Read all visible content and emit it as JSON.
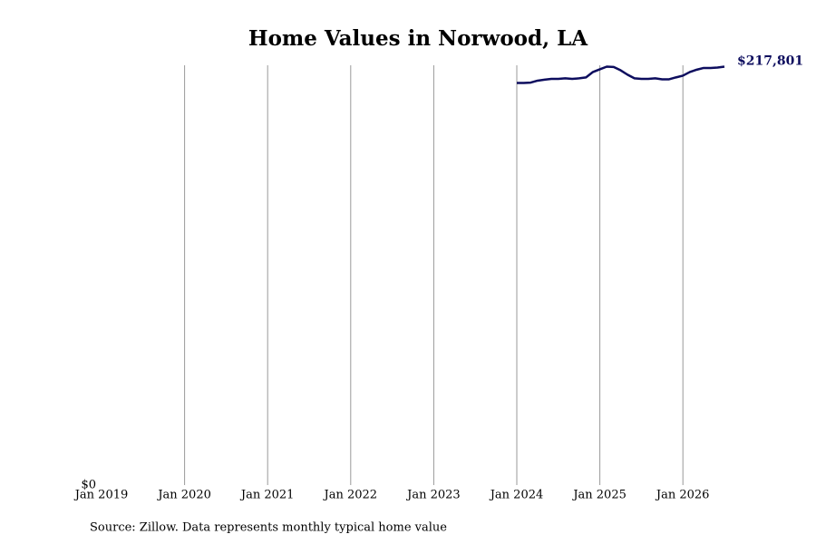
{
  "chart_data": {
    "type": "line",
    "title": "Home Values in Norwood, LA",
    "source": "Source: Zillow. Data represents monthly typical home value",
    "x": [
      "2024-01",
      "2024-02",
      "2024-03",
      "2024-04",
      "2024-05",
      "2024-06",
      "2024-07",
      "2024-08",
      "2024-09",
      "2024-10",
      "2024-11",
      "2024-12",
      "2025-01",
      "2025-02",
      "2025-03",
      "2025-04",
      "2025-05",
      "2025-06",
      "2025-07",
      "2025-08",
      "2025-09",
      "2025-10",
      "2025-11",
      "2025-12",
      "2026-01",
      "2026-02",
      "2026-03",
      "2026-04",
      "2026-05",
      "2026-06",
      "2026-07"
    ],
    "series": [
      {
        "color": "#0d0d5e",
        "values": [
          209300,
          209300,
          209500,
          210500,
          211000,
          211400,
          211400,
          211700,
          211400,
          211700,
          212200,
          215000,
          216400,
          217800,
          217600,
          215900,
          213600,
          211700,
          211400,
          211400,
          211700,
          211200,
          211200,
          212200,
          213100,
          215000,
          216200,
          217100,
          217100,
          217300,
          217801
        ],
        "value_labels": [
          null,
          null,
          null,
          null,
          null,
          null,
          null,
          null,
          null,
          null,
          null,
          null,
          null,
          null,
          null,
          null,
          null,
          null,
          null,
          null,
          null,
          null,
          null,
          null,
          null,
          null,
          null,
          null,
          null,
          null,
          "$217,801"
        ]
      }
    ],
    "xlim": [
      "2019-01",
      "2026-07"
    ],
    "xticks": [
      {
        "value": "2019-01",
        "label": "Jan 2019"
      },
      {
        "value": "2020-01",
        "label": "Jan 2020"
      },
      {
        "value": "2021-01",
        "label": "Jan 2021"
      },
      {
        "value": "2022-01",
        "label": "Jan 2022"
      },
      {
        "value": "2023-01",
        "label": "Jan 2023"
      },
      {
        "value": "2024-01",
        "label": "Jan 2024"
      },
      {
        "value": "2025-01",
        "label": "Jan 2025"
      },
      {
        "value": "2026-01",
        "label": "Jan 2026"
      }
    ],
    "ylim": [
      0,
      218500
    ],
    "yticks": [
      {
        "value": 0,
        "label": "$0"
      }
    ],
    "grid": true
  }
}
